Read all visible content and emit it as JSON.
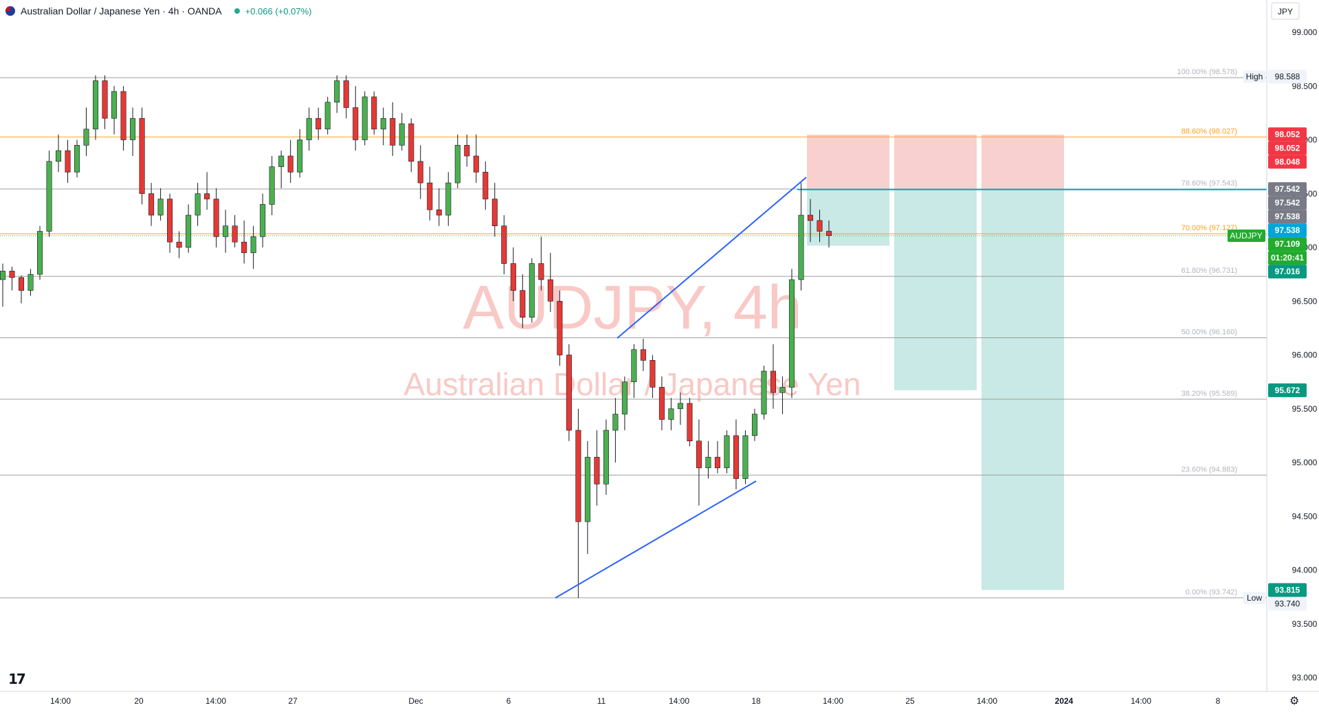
{
  "header": {
    "title": "Australian Dollar / Japanese Yen · 4h · OANDA",
    "change": "+0.066 (+0.07%)"
  },
  "watermark": {
    "line1": "AUDJPY, 4h",
    "line2": "Australian Dollar / Japanese Yen"
  },
  "currency_button": "JPY",
  "colors": {
    "up": "#4caf50",
    "down": "#e53935",
    "trendline": "#2962ff",
    "fib_orange": "#f7a21b",
    "fib_grey": "#9e9e9e",
    "stop_zone": "#f8d0cf",
    "target_zone": "#c8e9e5",
    "entry_line": "#00a5d9",
    "label_red": "#f23645",
    "label_grey": "#787b86",
    "label_teal": "#089981",
    "label_green": "#22ab2e",
    "label_blue": "#00a5d9"
  },
  "price_axis": {
    "ticks": [
      "99.000",
      "98.500",
      "98.000",
      "97.500",
      "97.000",
      "96.500",
      "96.000",
      "95.500",
      "95.000",
      "94.500",
      "94.000",
      "93.500",
      "93.000"
    ]
  },
  "time_axis": {
    "ticks": [
      "14:00",
      "20",
      "14:00",
      "27",
      "Dec",
      "6",
      "11",
      "14:00",
      "18",
      "14:00",
      "25",
      "14:00",
      "2024",
      "14:00",
      "8"
    ]
  },
  "price_labels": [
    {
      "text": "High",
      "value": 98.588,
      "kind": "tag"
    },
    {
      "text": "98.588",
      "value": 98.588,
      "kind": "plain"
    },
    {
      "text": "98.052",
      "value": 98.052,
      "kind": "red"
    },
    {
      "text": "98.052",
      "value": 98.052,
      "kind": "red"
    },
    {
      "text": "98.048",
      "value": 98.048,
      "kind": "red"
    },
    {
      "text": "97.542",
      "value": 97.542,
      "kind": "grey"
    },
    {
      "text": "97.542",
      "value": 97.542,
      "kind": "grey"
    },
    {
      "text": "97.538",
      "value": 97.538,
      "kind": "grey"
    },
    {
      "text": "97.538",
      "value": 97.538,
      "kind": "blue"
    },
    {
      "text": "AUDJPY",
      "value": 97.109,
      "kind": "green"
    },
    {
      "text": "97.109",
      "value": 97.109,
      "kind": "green"
    },
    {
      "text": "01:20:41",
      "value": 97.109,
      "kind": "green"
    },
    {
      "text": "97.016",
      "value": 97.016,
      "kind": "teal"
    },
    {
      "text": "95.672",
      "value": 95.672,
      "kind": "teal"
    },
    {
      "text": "93.815",
      "value": 93.815,
      "kind": "teal"
    },
    {
      "text": "Low",
      "value": 93.74,
      "kind": "tag"
    },
    {
      "text": "93.740",
      "value": 93.74,
      "kind": "plain"
    }
  ],
  "chart_data": {
    "type": "candlestick",
    "symbol": "AUDJPY",
    "interval": "4h",
    "ylim": [
      92.9,
      99.2
    ],
    "price_scale_unit": "JPY",
    "fibonacci": [
      {
        "label": "100.00% (98.578)",
        "level": 1.0,
        "price": 98.578,
        "color": "grey"
      },
      {
        "label": "88.60% (98.027)",
        "level": 0.886,
        "price": 98.027,
        "color": "orange"
      },
      {
        "label": "78.60% (97.543)",
        "level": 0.786,
        "price": 97.543,
        "color": "grey"
      },
      {
        "label": "70.00% (97.127)",
        "level": 0.7,
        "price": 97.127,
        "color": "orange"
      },
      {
        "label": "61.80% (96.731)",
        "level": 0.618,
        "price": 96.731,
        "color": "grey"
      },
      {
        "label": "50.00% (96.160)",
        "level": 0.5,
        "price": 96.16,
        "color": "grey"
      },
      {
        "label": "38.20% (95.589)",
        "level": 0.382,
        "price": 95.589,
        "color": "grey"
      },
      {
        "label": "23.60% (94.883)",
        "level": 0.236,
        "price": 94.883,
        "color": "grey"
      },
      {
        "label": "0.00% (93.742)",
        "level": 0.0,
        "price": 93.742,
        "color": "grey"
      }
    ],
    "trade_setup": {
      "entry": 97.538,
      "stop": 98.048,
      "targets": [
        97.016,
        95.672,
        93.815
      ]
    },
    "last_price": 97.109,
    "high": 98.588,
    "low": 93.74,
    "candles": [
      {
        "o": 96.7,
        "h": 96.85,
        "l": 96.45,
        "c": 96.78
      },
      {
        "o": 96.78,
        "h": 96.82,
        "l": 96.6,
        "c": 96.72
      },
      {
        "o": 96.72,
        "h": 96.74,
        "l": 96.48,
        "c": 96.6
      },
      {
        "o": 96.6,
        "h": 96.8,
        "l": 96.55,
        "c": 96.75
      },
      {
        "o": 96.75,
        "h": 97.2,
        "l": 96.7,
        "c": 97.15
      },
      {
        "o": 97.15,
        "h": 97.9,
        "l": 97.1,
        "c": 97.8
      },
      {
        "o": 97.8,
        "h": 98.05,
        "l": 97.7,
        "c": 97.9
      },
      {
        "o": 97.9,
        "h": 98.0,
        "l": 97.6,
        "c": 97.7
      },
      {
        "o": 97.7,
        "h": 98.0,
        "l": 97.65,
        "c": 97.95
      },
      {
        "o": 97.95,
        "h": 98.3,
        "l": 97.85,
        "c": 98.1
      },
      {
        "o": 98.1,
        "h": 98.6,
        "l": 98.0,
        "c": 98.55
      },
      {
        "o": 98.55,
        "h": 98.6,
        "l": 98.1,
        "c": 98.2
      },
      {
        "o": 98.2,
        "h": 98.5,
        "l": 98.05,
        "c": 98.45
      },
      {
        "o": 98.45,
        "h": 98.5,
        "l": 97.9,
        "c": 98.0
      },
      {
        "o": 98.0,
        "h": 98.3,
        "l": 97.85,
        "c": 98.2
      },
      {
        "o": 98.2,
        "h": 98.3,
        "l": 97.4,
        "c": 97.5
      },
      {
        "o": 97.5,
        "h": 97.6,
        "l": 97.2,
        "c": 97.3
      },
      {
        "o": 97.3,
        "h": 97.55,
        "l": 97.25,
        "c": 97.45
      },
      {
        "o": 97.45,
        "h": 97.5,
        "l": 96.95,
        "c": 97.05
      },
      {
        "o": 97.05,
        "h": 97.15,
        "l": 96.9,
        "c": 97.0
      },
      {
        "o": 97.0,
        "h": 97.4,
        "l": 96.95,
        "c": 97.3
      },
      {
        "o": 97.3,
        "h": 97.6,
        "l": 97.2,
        "c": 97.5
      },
      {
        "o": 97.5,
        "h": 97.7,
        "l": 97.35,
        "c": 97.45
      },
      {
        "o": 97.45,
        "h": 97.55,
        "l": 97.0,
        "c": 97.1
      },
      {
        "o": 97.1,
        "h": 97.35,
        "l": 96.95,
        "c": 97.2
      },
      {
        "o": 97.2,
        "h": 97.3,
        "l": 97.0,
        "c": 97.05
      },
      {
        "o": 97.05,
        "h": 97.25,
        "l": 96.85,
        "c": 96.95
      },
      {
        "o": 96.95,
        "h": 97.2,
        "l": 96.8,
        "c": 97.1
      },
      {
        "o": 97.1,
        "h": 97.5,
        "l": 97.0,
        "c": 97.4
      },
      {
        "o": 97.4,
        "h": 97.85,
        "l": 97.3,
        "c": 97.75
      },
      {
        "o": 97.75,
        "h": 97.9,
        "l": 97.55,
        "c": 97.85
      },
      {
        "o": 97.85,
        "h": 98.0,
        "l": 97.6,
        "c": 97.7
      },
      {
        "o": 97.7,
        "h": 98.1,
        "l": 97.65,
        "c": 98.0
      },
      {
        "o": 98.0,
        "h": 98.3,
        "l": 97.9,
        "c": 98.2
      },
      {
        "o": 98.2,
        "h": 98.3,
        "l": 98.0,
        "c": 98.1
      },
      {
        "o": 98.1,
        "h": 98.4,
        "l": 98.05,
        "c": 98.35
      },
      {
        "o": 98.35,
        "h": 98.6,
        "l": 98.25,
        "c": 98.55
      },
      {
        "o": 98.55,
        "h": 98.6,
        "l": 98.2,
        "c": 98.3
      },
      {
        "o": 98.3,
        "h": 98.5,
        "l": 97.9,
        "c": 98.0
      },
      {
        "o": 98.0,
        "h": 98.45,
        "l": 97.95,
        "c": 98.4
      },
      {
        "o": 98.4,
        "h": 98.45,
        "l": 98.05,
        "c": 98.1
      },
      {
        "o": 98.1,
        "h": 98.3,
        "l": 97.95,
        "c": 98.2
      },
      {
        "o": 98.2,
        "h": 98.35,
        "l": 97.85,
        "c": 97.95
      },
      {
        "o": 97.95,
        "h": 98.25,
        "l": 97.9,
        "c": 98.15
      },
      {
        "o": 98.15,
        "h": 98.2,
        "l": 97.7,
        "c": 97.8
      },
      {
        "o": 97.8,
        "h": 97.95,
        "l": 97.45,
        "c": 97.6
      },
      {
        "o": 97.6,
        "h": 97.75,
        "l": 97.25,
        "c": 97.35
      },
      {
        "o": 97.35,
        "h": 97.55,
        "l": 97.2,
        "c": 97.3
      },
      {
        "o": 97.3,
        "h": 97.7,
        "l": 97.2,
        "c": 97.6
      },
      {
        "o": 97.6,
        "h": 98.05,
        "l": 97.55,
        "c": 97.95
      },
      {
        "o": 97.95,
        "h": 98.05,
        "l": 97.75,
        "c": 97.85
      },
      {
        "o": 97.85,
        "h": 98.05,
        "l": 97.6,
        "c": 97.7
      },
      {
        "o": 97.7,
        "h": 97.8,
        "l": 97.35,
        "c": 97.45
      },
      {
        "o": 97.45,
        "h": 97.6,
        "l": 97.1,
        "c": 97.2
      },
      {
        "o": 97.2,
        "h": 97.3,
        "l": 96.75,
        "c": 96.85
      },
      {
        "o": 96.85,
        "h": 97.0,
        "l": 96.5,
        "c": 96.6
      },
      {
        "o": 96.6,
        "h": 96.75,
        "l": 96.25,
        "c": 96.35
      },
      {
        "o": 96.35,
        "h": 96.9,
        "l": 96.3,
        "c": 96.85
      },
      {
        "o": 96.85,
        "h": 97.1,
        "l": 96.6,
        "c": 96.7
      },
      {
        "o": 96.7,
        "h": 96.95,
        "l": 96.4,
        "c": 96.5
      },
      {
        "o": 96.5,
        "h": 96.6,
        "l": 95.9,
        "c": 96.0
      },
      {
        "o": 96.0,
        "h": 96.1,
        "l": 95.2,
        "c": 95.3
      },
      {
        "o": 95.3,
        "h": 95.5,
        "l": 93.74,
        "c": 94.45
      },
      {
        "o": 94.45,
        "h": 95.2,
        "l": 94.15,
        "c": 95.05
      },
      {
        "o": 95.05,
        "h": 95.3,
        "l": 94.6,
        "c": 94.8
      },
      {
        "o": 94.8,
        "h": 95.4,
        "l": 94.7,
        "c": 95.3
      },
      {
        "o": 95.3,
        "h": 95.6,
        "l": 95.0,
        "c": 95.45
      },
      {
        "o": 95.45,
        "h": 95.8,
        "l": 95.3,
        "c": 95.75
      },
      {
        "o": 95.75,
        "h": 96.1,
        "l": 95.6,
        "c": 96.05
      },
      {
        "o": 96.05,
        "h": 96.15,
        "l": 95.85,
        "c": 95.95
      },
      {
        "o": 95.95,
        "h": 96.0,
        "l": 95.6,
        "c": 95.7
      },
      {
        "o": 95.7,
        "h": 95.8,
        "l": 95.3,
        "c": 95.4
      },
      {
        "o": 95.4,
        "h": 95.6,
        "l": 95.3,
        "c": 95.5
      },
      {
        "o": 95.5,
        "h": 95.65,
        "l": 95.35,
        "c": 95.55
      },
      {
        "o": 95.55,
        "h": 95.6,
        "l": 95.15,
        "c": 95.2
      },
      {
        "o": 95.2,
        "h": 95.4,
        "l": 94.6,
        "c": 94.95
      },
      {
        "o": 94.95,
        "h": 95.2,
        "l": 94.85,
        "c": 95.05
      },
      {
        "o": 95.05,
        "h": 95.2,
        "l": 94.9,
        "c": 94.95
      },
      {
        "o": 94.95,
        "h": 95.3,
        "l": 94.9,
        "c": 95.25
      },
      {
        "o": 95.25,
        "h": 95.4,
        "l": 94.75,
        "c": 94.85
      },
      {
        "o": 94.85,
        "h": 95.3,
        "l": 94.8,
        "c": 95.25
      },
      {
        "o": 95.25,
        "h": 95.5,
        "l": 95.2,
        "c": 95.45
      },
      {
        "o": 95.45,
        "h": 95.9,
        "l": 95.4,
        "c": 95.85
      },
      {
        "o": 95.85,
        "h": 96.1,
        "l": 95.5,
        "c": 95.65
      },
      {
        "o": 95.65,
        "h": 95.8,
        "l": 95.45,
        "c": 95.7
      },
      {
        "o": 95.7,
        "h": 96.8,
        "l": 95.6,
        "c": 96.7
      },
      {
        "o": 96.7,
        "h": 97.6,
        "l": 96.6,
        "c": 97.3
      },
      {
        "o": 97.3,
        "h": 97.45,
        "l": 97.05,
        "c": 97.25
      },
      {
        "o": 97.25,
        "h": 97.35,
        "l": 97.05,
        "c": 97.15
      },
      {
        "o": 97.15,
        "h": 97.25,
        "l": 97.0,
        "c": 97.11
      }
    ]
  }
}
